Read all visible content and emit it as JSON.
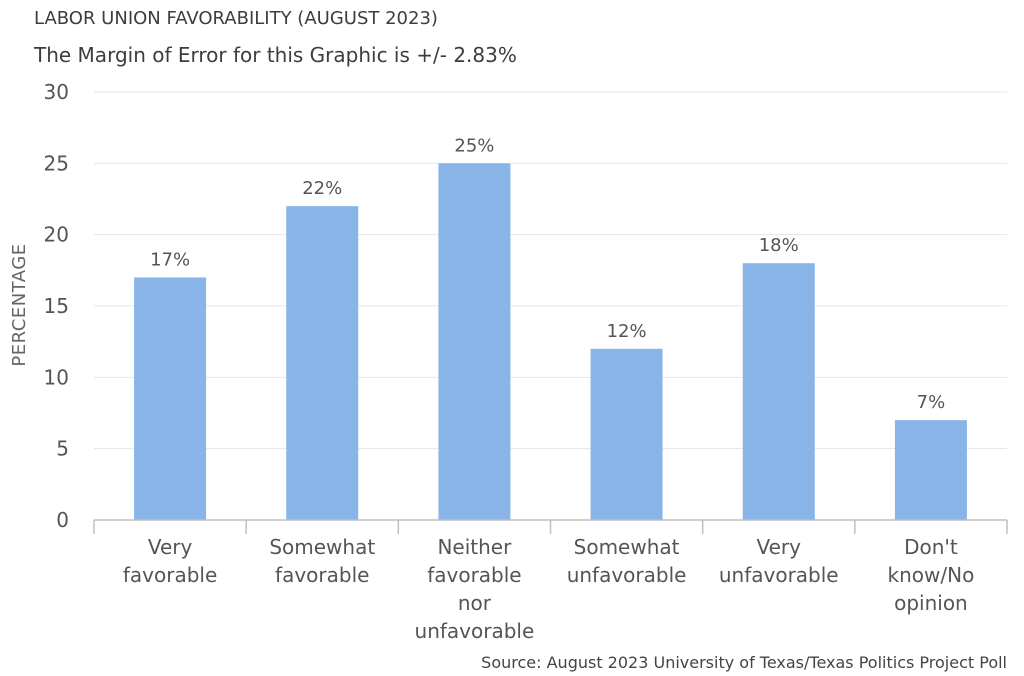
{
  "chart_data": {
    "type": "bar",
    "title": "LABOR UNION FAVORABILITY (AUGUST 2023)",
    "subtitle": "The Margin of Error for this Graphic is +/- 2.83%",
    "ylabel": "PERCENTAGE",
    "xlabel": "",
    "ylim": [
      0,
      30
    ],
    "yticks": [
      0,
      5,
      10,
      15,
      20,
      25,
      30
    ],
    "grid": true,
    "categories": [
      [
        "Very",
        "favorable"
      ],
      [
        "Somewhat",
        "favorable"
      ],
      [
        "Neither",
        "favorable",
        "nor",
        "unfavorable"
      ],
      [
        "Somewhat",
        "unfavorable"
      ],
      [
        "Very",
        "unfavorable"
      ],
      [
        "Don't",
        "know/No",
        "opinion"
      ]
    ],
    "values": [
      17,
      22,
      25,
      12,
      18,
      7
    ],
    "data_labels": [
      "17%",
      "22%",
      "25%",
      "12%",
      "18%",
      "7%"
    ],
    "bar_color": "#88b4e7",
    "source": "Source: August 2023 University of Texas/Texas Politics Project Poll"
  }
}
